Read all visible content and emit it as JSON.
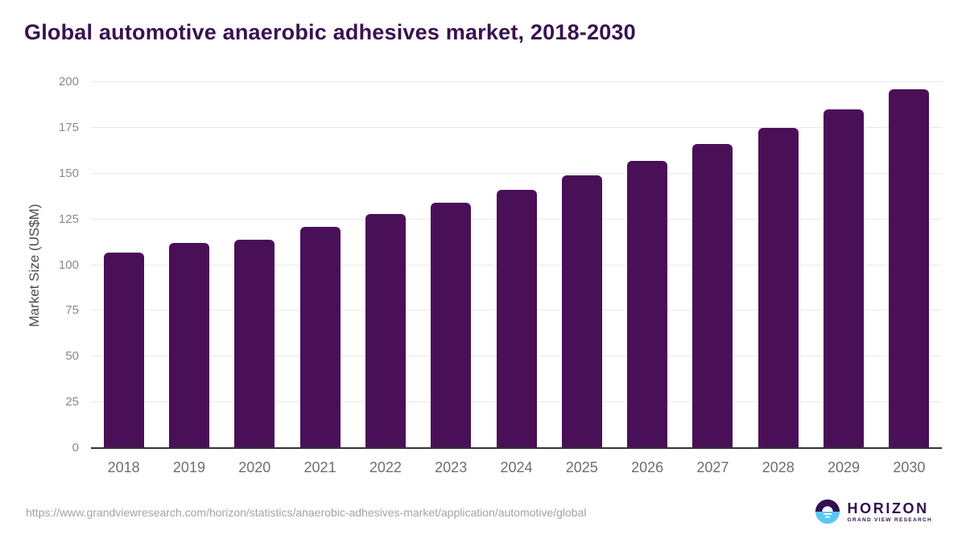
{
  "title": "Global automotive anaerobic adhesives market, 2018-2030",
  "y_axis_title": "Market Size (US$M)",
  "footer": {
    "source_url": "https://www.grandviewresearch.com/horizon/statistics/anaerobic-adhesives-market/application/automotive/global",
    "logo": {
      "name": "HORIZON",
      "subtitle": "GRAND VIEW RESEARCH"
    }
  },
  "colors": {
    "bar": "#491058",
    "title_text": "#3a1052",
    "gridline": "#e9e9e9",
    "axis_line": "#333333",
    "y_tick_text": "#8a8a8a",
    "x_tick_text": "#6e6e6e",
    "url_text": "#a3a3a3",
    "logo_purple": "#2f1050",
    "logo_blue": "#5bc8f3"
  },
  "chart_data": {
    "type": "bar",
    "title": "Global automotive anaerobic adhesives market, 2018-2030",
    "categories": [
      "2018",
      "2019",
      "2020",
      "2021",
      "2022",
      "2023",
      "2024",
      "2025",
      "2026",
      "2027",
      "2028",
      "2029",
      "2030"
    ],
    "values": [
      107,
      112,
      114,
      121,
      128,
      134,
      141,
      149,
      157,
      166,
      175,
      185,
      196
    ],
    "xlabel": "",
    "ylabel": "Market Size (US$M)",
    "ylim": [
      0,
      200
    ],
    "yticks": [
      0,
      25,
      50,
      75,
      100,
      125,
      150,
      175,
      200
    ],
    "grid": true,
    "legend": "none",
    "bar_color": "#491058"
  }
}
